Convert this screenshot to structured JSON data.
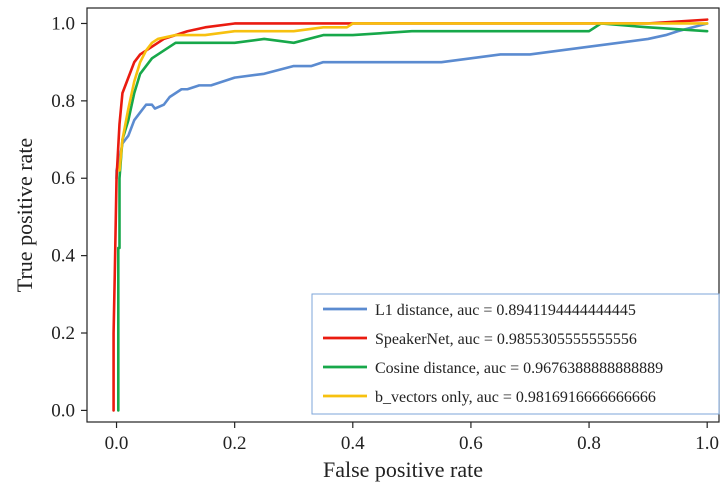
{
  "chart_data": {
    "type": "line",
    "title": "",
    "xlabel": "False positive rate",
    "ylabel": "True positive rate",
    "xlim": [
      -0.05,
      1.02
    ],
    "ylim": [
      -0.03,
      1.04
    ],
    "xticks": [
      0.0,
      0.2,
      0.4,
      0.6,
      0.8,
      1.0
    ],
    "yticks": [
      0.0,
      0.2,
      0.4,
      0.6,
      0.8,
      1.0
    ],
    "xtick_labels": [
      "0.0",
      "0.2",
      "0.4",
      "0.6",
      "0.8",
      "1.0"
    ],
    "ytick_labels": [
      "0.0",
      "0.2",
      "0.4",
      "0.6",
      "0.8",
      "1.0"
    ],
    "grid": false,
    "legend_position": "lower-right",
    "series": [
      {
        "name": "L1 distance, auc = 0.8941194444444445",
        "color": "#5b8bd0",
        "x": [
          0.0,
          0.0,
          0.005,
          0.01,
          0.02,
          0.03,
          0.04,
          0.05,
          0.06,
          0.065,
          0.08,
          0.09,
          0.1,
          0.11,
          0.12,
          0.14,
          0.16,
          0.18,
          0.2,
          0.25,
          0.3,
          0.33,
          0.35,
          0.37,
          0.4,
          0.5,
          0.55,
          0.6,
          0.65,
          0.7,
          0.8,
          0.9,
          0.93,
          0.95,
          1.0
        ],
        "y": [
          0.6,
          0.62,
          0.65,
          0.69,
          0.71,
          0.75,
          0.77,
          0.79,
          0.79,
          0.78,
          0.79,
          0.81,
          0.82,
          0.83,
          0.83,
          0.84,
          0.84,
          0.85,
          0.86,
          0.87,
          0.89,
          0.89,
          0.9,
          0.9,
          0.9,
          0.9,
          0.9,
          0.91,
          0.92,
          0.92,
          0.94,
          0.96,
          0.97,
          0.98,
          1.0
        ]
      },
      {
        "name": "SpeakerNet, auc = 0.9855305555555556",
        "color": "#ea1b10",
        "x": [
          -0.005,
          -0.005,
          -0.003,
          0.0,
          0.005,
          0.01,
          0.02,
          0.03,
          0.04,
          0.05,
          0.06,
          0.08,
          0.1,
          0.12,
          0.15,
          0.2,
          0.3,
          0.35,
          0.5,
          0.8,
          0.9,
          1.0
        ],
        "y": [
          0.0,
          0.2,
          0.35,
          0.6,
          0.74,
          0.82,
          0.86,
          0.9,
          0.92,
          0.93,
          0.94,
          0.96,
          0.97,
          0.98,
          0.99,
          1.0,
          1.0,
          1.0,
          1.0,
          1.0,
          1.0,
          1.01
        ]
      },
      {
        "name": "Cosine distance, auc = 0.9676388888888889",
        "color": "#17a84a",
        "x": [
          0.003,
          0.003,
          0.005,
          0.005,
          0.01,
          0.02,
          0.03,
          0.04,
          0.06,
          0.08,
          0.1,
          0.15,
          0.2,
          0.25,
          0.3,
          0.35,
          0.4,
          0.5,
          0.6,
          0.7,
          0.8,
          0.82,
          0.9,
          1.0
        ],
        "y": [
          0.0,
          0.42,
          0.42,
          0.6,
          0.7,
          0.75,
          0.82,
          0.87,
          0.91,
          0.93,
          0.95,
          0.95,
          0.95,
          0.96,
          0.95,
          0.97,
          0.97,
          0.98,
          0.98,
          0.98,
          0.98,
          1.0,
          0.99,
          0.98
        ]
      },
      {
        "name": "b_vectors only, auc = 0.9816916666666666",
        "color": "#f7c10f",
        "x": [
          0.005,
          0.01,
          0.02,
          0.03,
          0.04,
          0.05,
          0.06,
          0.07,
          0.1,
          0.15,
          0.2,
          0.3,
          0.35,
          0.39,
          0.4,
          0.6,
          0.8,
          1.0
        ],
        "y": [
          0.62,
          0.7,
          0.78,
          0.85,
          0.9,
          0.93,
          0.95,
          0.96,
          0.97,
          0.97,
          0.98,
          0.98,
          0.99,
          0.99,
          1.0,
          1.0,
          1.0,
          1.0
        ]
      }
    ]
  }
}
